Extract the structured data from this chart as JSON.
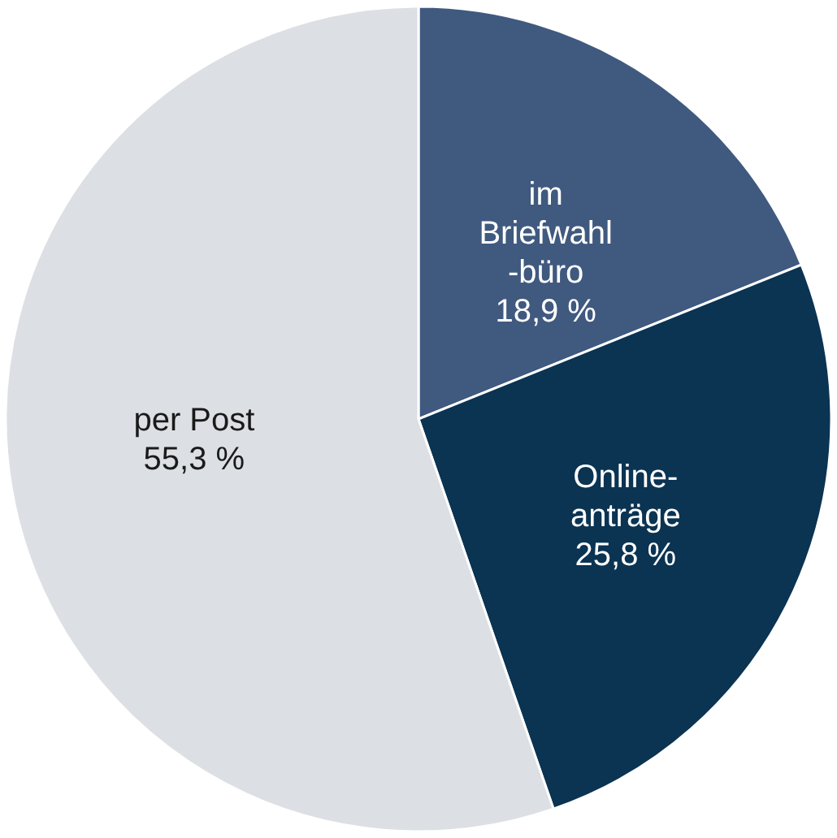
{
  "chart_data": {
    "type": "pie",
    "categories": [
      "im\nBriefwahl\n-büro",
      "Online-\nanträge",
      "per Post"
    ],
    "values": [
      18.9,
      25.8,
      55.3
    ],
    "colors": [
      "#40597f",
      "#0b3352",
      "#dcdfe3"
    ],
    "value_labels": [
      "18,9 %",
      "25,8 %",
      "55,3 %"
    ]
  }
}
